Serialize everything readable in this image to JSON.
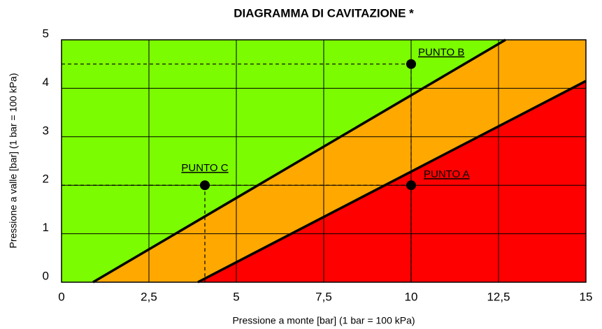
{
  "chart_data": {
    "type": "line",
    "title": "DIAGRAMMA DI CAVITAZIONE *",
    "xlabel": "Pressione a monte [bar] (1 bar = 100 kPa)",
    "ylabel": "Pressione a valle [bar] (1 bar = 100 kPa)",
    "xlim": [
      0,
      15
    ],
    "ylim": [
      0,
      5
    ],
    "xticks": [
      0,
      {
        "value": 2.5,
        "label": "2,5"
      },
      5,
      {
        "value": 7.5,
        "label": "7,5"
      },
      10,
      {
        "value": 12.5,
        "label": "12,5"
      },
      15
    ],
    "yticks": [
      0,
      1,
      2,
      3,
      4,
      5
    ],
    "grid": true,
    "background": "#7cfc00",
    "series": [
      {
        "color": "#000000",
        "fill": "#ffa800",
        "x": [
          0.9,
          12.7
        ],
        "values": [
          0,
          5
        ]
      },
      {
        "color": "#000000",
        "fill": "#ff0000",
        "x": [
          3.9,
          15
        ],
        "values": [
          0,
          4.15
        ]
      }
    ],
    "points": [
      {
        "label": "PUNTO A",
        "x": 10,
        "y": 2
      },
      {
        "label": "PUNTO B",
        "x": 10,
        "y": 4.5
      },
      {
        "label": "PUNTO C",
        "x": 4.1,
        "y": 2
      }
    ]
  }
}
